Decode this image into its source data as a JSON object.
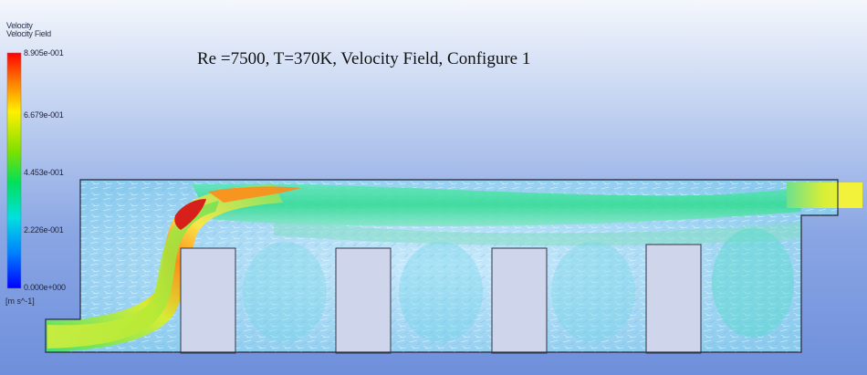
{
  "title": "Re =7500, T=370K, Velocity Field, Configure 1",
  "legend": {
    "title_line1": "Velocity",
    "title_line2": "Velocity Field",
    "unit": "[m s^-1]",
    "max": 0.8905,
    "min": 0.0,
    "ticks": [
      "8.905e-001",
      "6.679e-001",
      "4.453e-001",
      "2.226e-001",
      "0.000e+000"
    ],
    "colormap": [
      "#0000ff",
      "#0080ff",
      "#00e5ff",
      "#00e060",
      "#60e000",
      "#f0f000",
      "#ff9000",
      "#ff0000"
    ]
  },
  "domain": {
    "blocks": 4,
    "description_colors": {
      "background_flow": "#a9d7ef",
      "core_jet": "#1fd38d",
      "peak": "#d21b12"
    }
  }
}
